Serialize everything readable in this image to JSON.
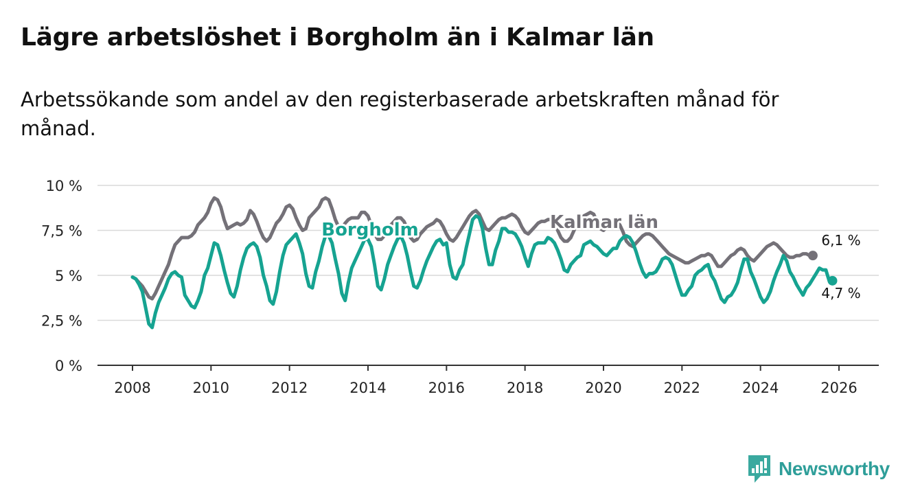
{
  "title": "Lägre arbetslöshet i Borgholm än i Kalmar län",
  "subtitle": "Arbetssökande som andel av den registerbaserade arbetskraften månad för månad.",
  "brand": "Newsworthy",
  "colors": {
    "borgholm": "#16a391",
    "kalmar": "#747178",
    "grid": "#d9d9d9",
    "axis": "#333333"
  },
  "chart_data": {
    "type": "line",
    "title": "Lägre arbetslöshet i Borgholm än i Kalmar län",
    "xlabel": "",
    "ylabel": "",
    "xlim": [
      2007.6,
      2027.0
    ],
    "ylim": [
      0,
      10
    ],
    "x_ticks": [
      2008,
      2010,
      2012,
      2014,
      2016,
      2018,
      2020,
      2022,
      2024,
      2026
    ],
    "x_tick_labels": [
      "2008",
      "2010",
      "2012",
      "2014",
      "2016",
      "2018",
      "2020",
      "2022",
      "2024",
      "2026"
    ],
    "y_ticks": [
      0,
      2.5,
      5,
      7.5,
      10
    ],
    "y_tick_labels": [
      "0 %",
      "2,5 %",
      "5 %",
      "7,5 %",
      "10 %"
    ],
    "series": [
      {
        "name": "Kalmar län",
        "label": "Kalmar län",
        "end_label": "6,1 %",
        "x_start": 2008.0,
        "x_step": 0.0833333,
        "values": [
          4.9,
          4.8,
          4.6,
          4.4,
          4.1,
          3.8,
          3.7,
          4.0,
          4.4,
          4.8,
          5.2,
          5.6,
          6.2,
          6.7,
          6.9,
          7.1,
          7.1,
          7.1,
          7.2,
          7.4,
          7.8,
          8.0,
          8.2,
          8.5,
          9.0,
          9.3,
          9.2,
          8.8,
          8.1,
          7.6,
          7.7,
          7.8,
          7.9,
          7.8,
          7.9,
          8.1,
          8.6,
          8.4,
          8.0,
          7.5,
          7.1,
          6.9,
          7.1,
          7.5,
          7.9,
          8.1,
          8.4,
          8.8,
          8.9,
          8.7,
          8.2,
          7.8,
          7.5,
          7.6,
          8.2,
          8.4,
          8.6,
          8.8,
          9.2,
          9.3,
          9.2,
          8.7,
          8.1,
          7.7,
          7.6,
          7.9,
          8.1,
          8.2,
          8.2,
          8.2,
          8.5,
          8.5,
          8.3,
          7.8,
          7.3,
          7.0,
          7.0,
          7.2,
          7.5,
          7.8,
          8.0,
          8.2,
          8.2,
          8.0,
          7.6,
          7.1,
          6.9,
          7.0,
          7.3,
          7.5,
          7.7,
          7.8,
          7.9,
          8.1,
          8.0,
          7.7,
          7.3,
          7.0,
          6.9,
          7.1,
          7.4,
          7.7,
          8.0,
          8.3,
          8.5,
          8.6,
          8.4,
          8.0,
          7.6,
          7.5,
          7.7,
          7.9,
          8.1,
          8.2,
          8.2,
          8.3,
          8.4,
          8.3,
          8.1,
          7.7,
          7.4,
          7.3,
          7.5,
          7.7,
          7.9,
          8.0,
          8.0,
          8.1,
          8.1,
          7.9,
          7.5,
          7.1,
          6.9,
          6.9,
          7.1,
          7.5,
          7.9,
          8.1,
          8.3,
          8.4,
          8.5,
          8.4,
          8.0,
          7.6,
          7.5,
          7.7,
          7.9,
          8.0,
          8.0,
          7.8,
          7.4,
          6.9,
          6.7,
          6.6,
          6.8,
          7.0,
          7.2,
          7.3,
          7.3,
          7.2,
          7.0,
          6.8,
          6.6,
          6.4,
          6.2,
          6.1,
          6.0,
          5.9,
          5.8,
          5.7,
          5.7,
          5.8,
          5.9,
          6.0,
          6.1,
          6.1,
          6.2,
          6.1,
          5.8,
          5.5,
          5.5,
          5.7,
          5.9,
          6.1,
          6.2,
          6.4,
          6.5,
          6.4,
          6.1,
          5.9,
          5.8,
          6.0,
          6.2,
          6.4,
          6.6,
          6.7,
          6.8,
          6.7,
          6.5,
          6.3,
          6.1,
          6.0,
          6.0,
          6.1,
          6.1,
          6.2,
          6.2,
          6.1,
          6.1
        ]
      },
      {
        "name": "Borgholm",
        "label": "Borgholm",
        "end_label": "4,7 %",
        "x_start": 2008.0,
        "x_step": 0.0833333,
        "values": [
          4.9,
          4.8,
          4.5,
          4.1,
          3.2,
          2.3,
          2.1,
          2.9,
          3.5,
          3.9,
          4.3,
          4.8,
          5.1,
          5.2,
          5.0,
          4.9,
          3.9,
          3.6,
          3.3,
          3.2,
          3.6,
          4.1,
          5.0,
          5.4,
          6.1,
          6.8,
          6.7,
          6.1,
          5.3,
          4.6,
          4.0,
          3.8,
          4.4,
          5.3,
          6.0,
          6.5,
          6.7,
          6.8,
          6.6,
          6.0,
          5.0,
          4.4,
          3.6,
          3.4,
          4.1,
          5.2,
          6.1,
          6.7,
          6.9,
          7.1,
          7.3,
          6.8,
          6.2,
          5.1,
          4.4,
          4.3,
          5.2,
          5.8,
          6.6,
          7.2,
          7.2,
          6.8,
          5.9,
          5.1,
          4.0,
          3.6,
          4.6,
          5.4,
          5.8,
          6.2,
          6.6,
          7.0,
          7.0,
          6.6,
          5.6,
          4.4,
          4.2,
          4.8,
          5.6,
          6.1,
          6.6,
          7.0,
          7.2,
          6.8,
          6.1,
          5.2,
          4.4,
          4.3,
          4.7,
          5.3,
          5.8,
          6.2,
          6.6,
          6.9,
          7.0,
          6.7,
          6.8,
          5.6,
          4.9,
          4.8,
          5.3,
          5.6,
          6.5,
          7.3,
          8.1,
          8.3,
          8.2,
          7.6,
          6.5,
          5.6,
          5.6,
          6.4,
          6.9,
          7.6,
          7.6,
          7.4,
          7.4,
          7.3,
          7.0,
          6.6,
          6.0,
          5.5,
          6.2,
          6.7,
          6.8,
          6.8,
          6.8,
          7.1,
          7.0,
          6.8,
          6.4,
          5.9,
          5.3,
          5.2,
          5.6,
          5.8,
          6.0,
          6.1,
          6.7,
          6.8,
          6.9,
          6.7,
          6.6,
          6.4,
          6.2,
          6.1,
          6.3,
          6.5,
          6.5,
          6.9,
          7.1,
          7.2,
          7.1,
          6.8,
          6.3,
          5.7,
          5.2,
          4.9,
          5.1,
          5.1,
          5.2,
          5.5,
          5.9,
          6.0,
          5.9,
          5.6,
          5.0,
          4.4,
          3.9,
          3.9,
          4.2,
          4.4,
          5.0,
          5.2,
          5.3,
          5.5,
          5.6,
          5.0,
          4.7,
          4.2,
          3.7,
          3.5,
          3.8,
          3.9,
          4.2,
          4.6,
          5.3,
          5.9,
          5.9,
          5.2,
          4.8,
          4.3,
          3.8,
          3.5,
          3.7,
          4.1,
          4.7,
          5.2,
          5.6,
          6.1,
          5.8,
          5.2,
          4.9,
          4.5,
          4.2,
          3.9,
          4.3,
          4.5,
          4.8,
          5.1,
          5.4,
          5.3,
          5.3,
          4.7,
          4.7
        ]
      }
    ]
  }
}
